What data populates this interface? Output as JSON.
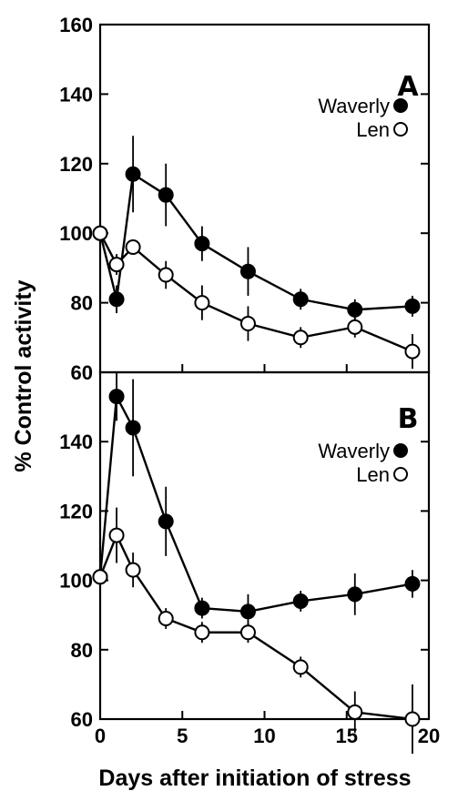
{
  "chart_data": [
    {
      "type": "line",
      "panel_label": "A",
      "x_ticks": [
        0,
        5,
        10,
        15,
        20
      ],
      "y_ticks": [
        60,
        80,
        100,
        120,
        140,
        160
      ],
      "y_tick_labels": [
        "60",
        "80",
        "100",
        "120",
        "140",
        "160"
      ],
      "xlim": [
        0,
        20
      ],
      "ylim": [
        60,
        160
      ],
      "legend_position": "upper-right",
      "series": [
        {
          "name": "Waverly",
          "marker": "filled-circle",
          "color": "#000000",
          "x": [
            0,
            1,
            2,
            4,
            6.2,
            9,
            12.2,
            15.5,
            19
          ],
          "y": [
            100,
            81,
            117,
            111,
            97,
            89,
            81,
            78,
            79
          ],
          "error": [
            0,
            4,
            11,
            9,
            5,
            7,
            3,
            3,
            3
          ]
        },
        {
          "name": "Len",
          "marker": "open-circle",
          "color": "#000000",
          "x": [
            0,
            1,
            2,
            4,
            6.2,
            9,
            12.2,
            15.5,
            19
          ],
          "y": [
            100,
            91,
            96,
            88,
            80,
            74,
            70,
            73,
            66
          ],
          "error": [
            0,
            3,
            2,
            4,
            5,
            5,
            3,
            3,
            5
          ]
        }
      ]
    },
    {
      "type": "line",
      "panel_label": "B",
      "x_ticks": [
        0,
        5,
        10,
        15,
        20
      ],
      "x_tick_labels": [
        "0",
        "5",
        "10",
        "15",
        "20"
      ],
      "y_ticks": [
        60,
        80,
        100,
        120,
        140
      ],
      "y_tick_labels": [
        "60",
        "80",
        "100",
        "120",
        "140"
      ],
      "xlim": [
        0,
        20
      ],
      "ylim": [
        60,
        160
      ],
      "legend_position": "upper-right",
      "series": [
        {
          "name": "Waverly",
          "marker": "filled-circle",
          "color": "#000000",
          "x": [
            0,
            1,
            2,
            4,
            6.2,
            9,
            12.2,
            15.5,
            19
          ],
          "y": [
            101,
            153,
            144,
            117,
            92,
            91,
            94,
            96,
            99
          ],
          "error": [
            0,
            7,
            14,
            10,
            3,
            5,
            3,
            6,
            4
          ]
        },
        {
          "name": "Len",
          "marker": "open-circle",
          "color": "#000000",
          "x": [
            0,
            1,
            2,
            4,
            6.2,
            9,
            12.2,
            15.5,
            19
          ],
          "y": [
            101,
            113,
            103,
            89,
            85,
            85,
            75,
            62,
            60
          ],
          "error": [
            0,
            8,
            5,
            3,
            3,
            3,
            3,
            6,
            10
          ]
        }
      ]
    }
  ],
  "xlabel": "Days after initiation of stress",
  "ylabel": "% Control activity",
  "top_axis_max_label": "160"
}
